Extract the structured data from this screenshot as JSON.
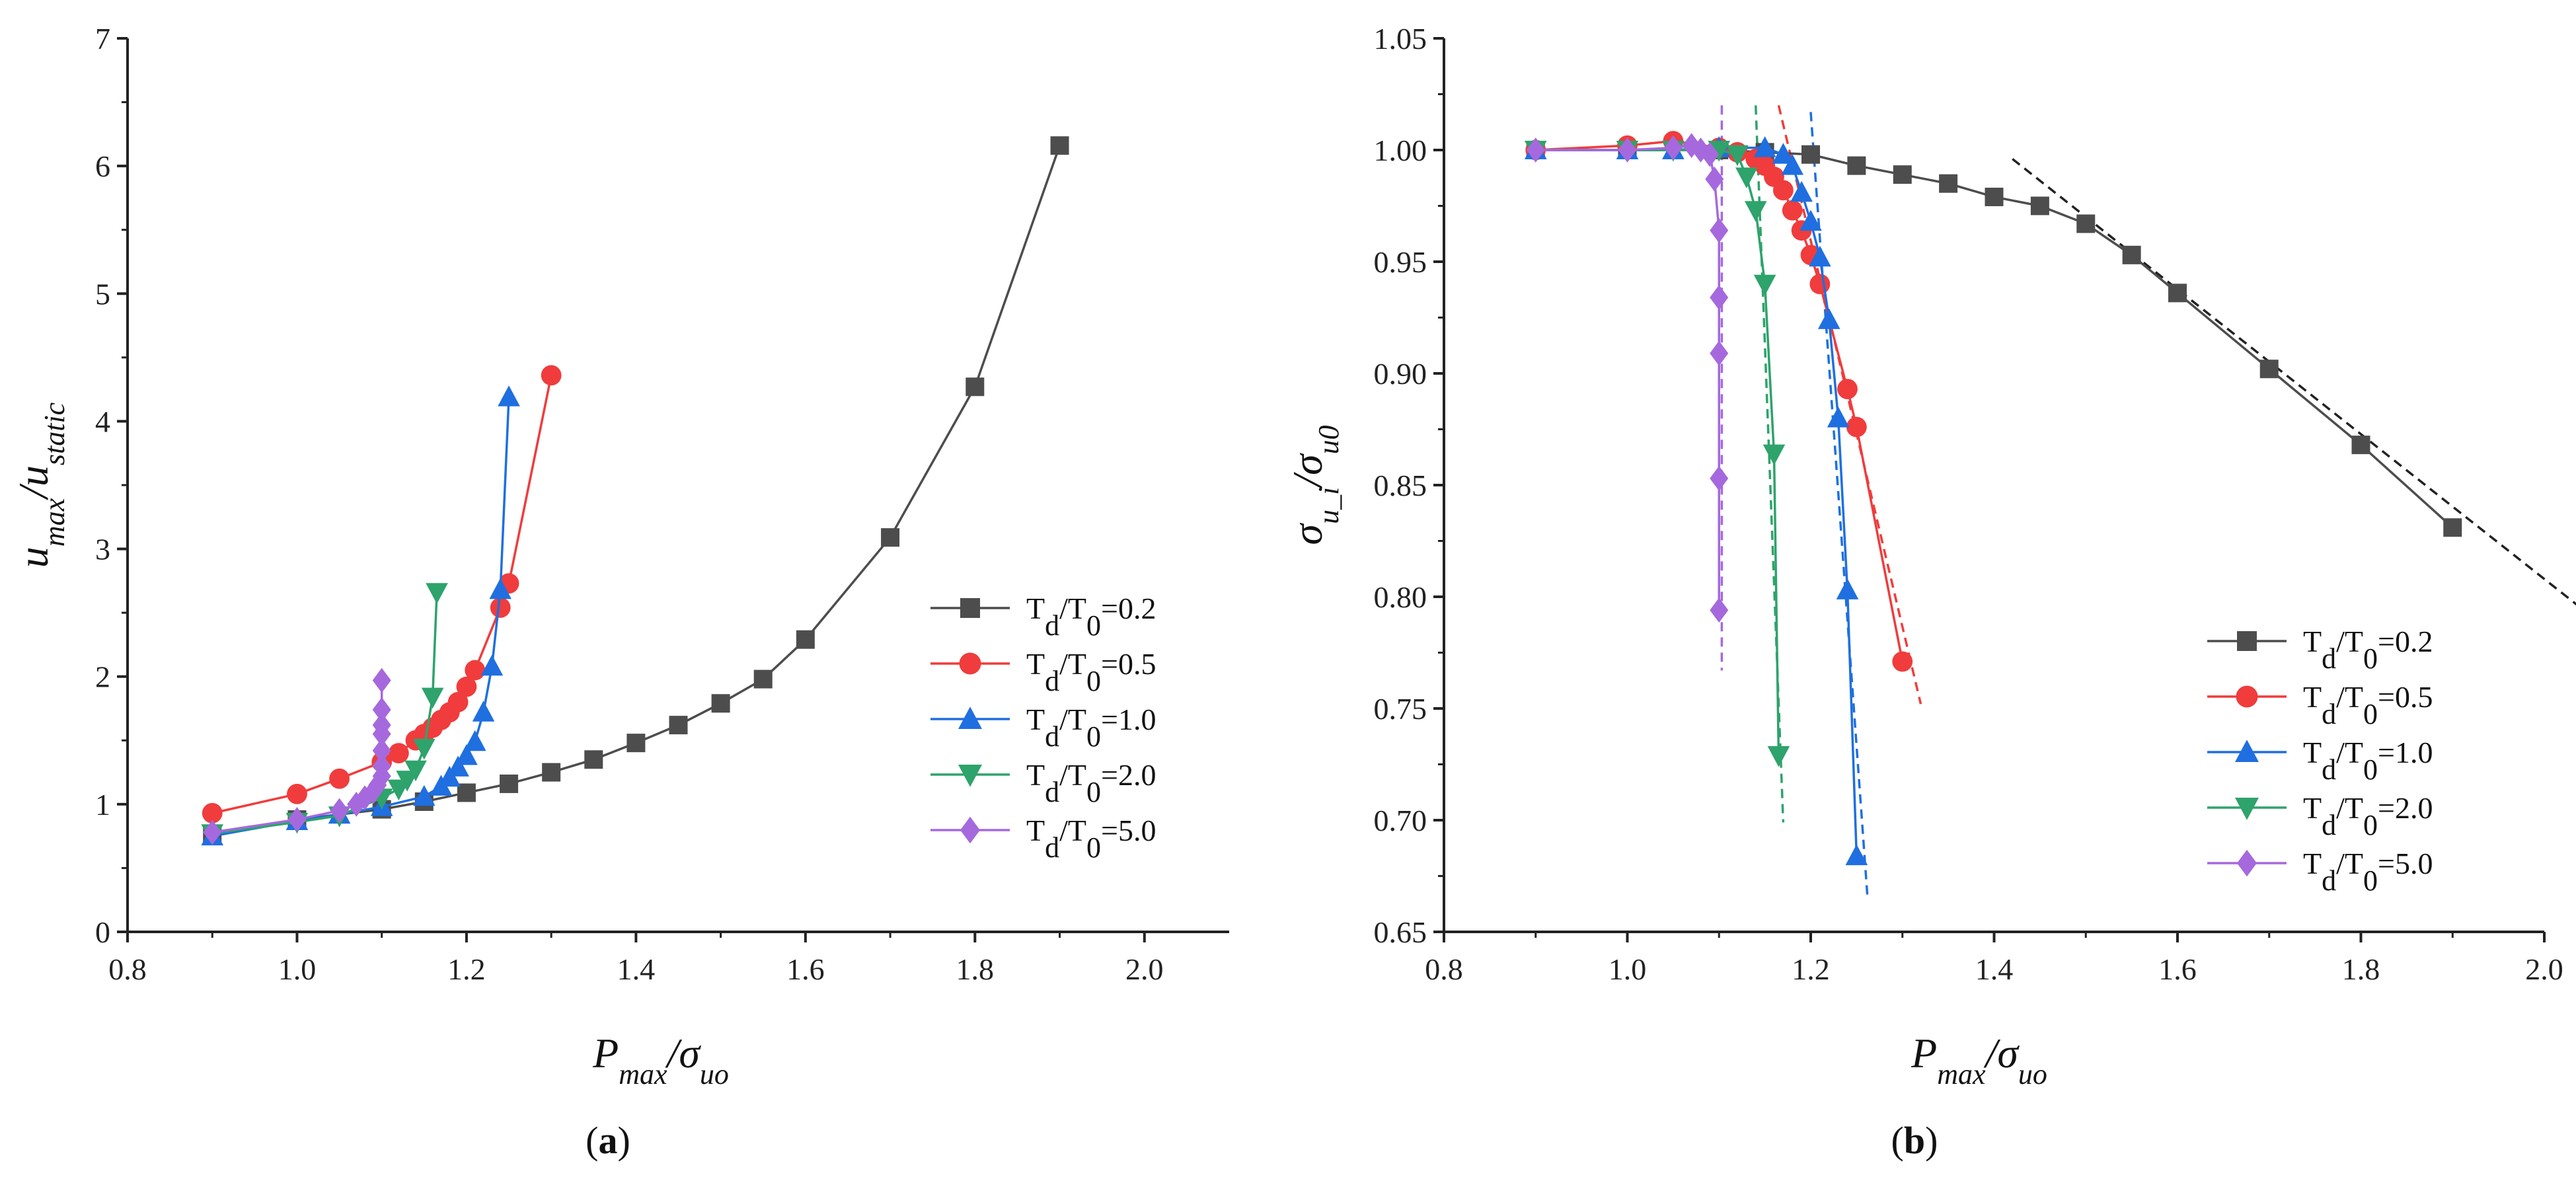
{
  "chart_data": [
    {
      "id": "a",
      "type": "line",
      "caption": "(a)",
      "xlabel": "P_max/σ_uo",
      "ylabel": "u_max/u_static",
      "xlim": [
        0.8,
        2.1
      ],
      "ylim": [
        0,
        7
      ],
      "xticks": [
        "0.8",
        "1.0",
        "1.2",
        "1.4",
        "1.6",
        "1.8",
        "2.0"
      ],
      "yticks": [
        "0",
        "1",
        "2",
        "3",
        "4",
        "5",
        "6",
        "7"
      ],
      "legend_position": "right",
      "series": [
        {
          "name": "Td/T0=0.2",
          "color": "#4d4d4d",
          "marker": "square",
          "x": [
            0.9,
            1.0,
            1.1,
            1.15,
            1.2,
            1.25,
            1.3,
            1.35,
            1.4,
            1.45,
            1.5,
            1.55,
            1.6,
            1.7,
            1.8,
            1.9
          ],
          "y": [
            0.76,
            0.88,
            0.96,
            1.02,
            1.09,
            1.16,
            1.25,
            1.35,
            1.48,
            1.62,
            1.79,
            1.98,
            2.29,
            3.09,
            4.27,
            6.16
          ]
        },
        {
          "name": "Td/T0=0.5",
          "color": "#f03c3c",
          "marker": "circle",
          "x": [
            0.9,
            1.0,
            1.05,
            1.1,
            1.12,
            1.14,
            1.15,
            1.16,
            1.17,
            1.18,
            1.19,
            1.2,
            1.21,
            1.24,
            1.25,
            1.3
          ],
          "y": [
            0.93,
            1.08,
            1.2,
            1.33,
            1.4,
            1.5,
            1.55,
            1.6,
            1.66,
            1.72,
            1.8,
            1.92,
            2.05,
            2.54,
            2.73,
            4.36
          ]
        },
        {
          "name": "Td/T0=1.0",
          "color": "#1f6fe0",
          "marker": "triangle-up",
          "x": [
            0.9,
            1.0,
            1.05,
            1.1,
            1.15,
            1.17,
            1.18,
            1.19,
            1.2,
            1.21,
            1.22,
            1.23,
            1.24,
            1.25
          ],
          "y": [
            0.75,
            0.87,
            0.92,
            0.98,
            1.06,
            1.14,
            1.21,
            1.29,
            1.38,
            1.49,
            1.72,
            2.08,
            2.68,
            4.19
          ]
        },
        {
          "name": "Td/T0=2.0",
          "color": "#2ea36b",
          "marker": "triangle-down",
          "x": [
            0.9,
            1.0,
            1.05,
            1.1,
            1.12,
            1.13,
            1.14,
            1.15,
            1.16,
            1.165
          ],
          "y": [
            0.77,
            0.86,
            0.91,
            1.05,
            1.12,
            1.19,
            1.27,
            1.44,
            1.84,
            2.66
          ]
        },
        {
          "name": "Td/T0=5.0",
          "color": "#a569dd",
          "marker": "diamond",
          "x": [
            0.9,
            1.0,
            1.05,
            1.07,
            1.08,
            1.09,
            1.095,
            1.1,
            1.1,
            1.1,
            1.1,
            1.1,
            1.1,
            1.1
          ],
          "y": [
            0.78,
            0.88,
            0.95,
            1.0,
            1.05,
            1.1,
            1.15,
            1.22,
            1.3,
            1.42,
            1.55,
            1.62,
            1.74,
            1.97
          ]
        }
      ]
    },
    {
      "id": "b",
      "type": "line",
      "caption": "(b)",
      "xlabel": "P_max/σ_uo",
      "ylabel": "σ_u_i/σ_u0",
      "xlim": [
        0.8,
        2.0
      ],
      "ylim": [
        0.65,
        1.05
      ],
      "xticks": [
        "0.8",
        "1.0",
        "1.2",
        "1.4",
        "1.6",
        "1.8",
        "2.0"
      ],
      "yticks": [
        "0.65",
        "0.70",
        "0.75",
        "0.80",
        "0.85",
        "0.90",
        "0.95",
        "1.00",
        "1.05"
      ],
      "legend_position": "bottom-right",
      "series": [
        {
          "name": "Td/T0=0.2",
          "color": "#4d4d4d",
          "marker": "square",
          "x": [
            0.9,
            1.0,
            1.1,
            1.15,
            1.2,
            1.25,
            1.3,
            1.35,
            1.4,
            1.45,
            1.5,
            1.55,
            1.6,
            1.7,
            1.8,
            1.9
          ],
          "y": [
            1.0,
            1.0,
            1.0,
            0.999,
            0.998,
            0.993,
            0.989,
            0.985,
            0.979,
            0.975,
            0.967,
            0.953,
            0.936,
            0.902,
            0.868,
            0.831
          ]
        },
        {
          "name": "Td/T0=0.5",
          "color": "#f03c3c",
          "marker": "circle",
          "x": [
            0.9,
            1.0,
            1.05,
            1.1,
            1.12,
            1.14,
            1.15,
            1.16,
            1.17,
            1.18,
            1.19,
            1.2,
            1.21,
            1.24,
            1.25,
            1.3
          ],
          "y": [
            1.0,
            1.002,
            1.004,
            1.001,
            0.999,
            0.996,
            0.993,
            0.988,
            0.982,
            0.973,
            0.964,
            0.953,
            0.94,
            0.893,
            0.876,
            0.771
          ]
        },
        {
          "name": "Td/T0=1.0",
          "color": "#1f6fe0",
          "marker": "triangle-up",
          "x": [
            0.9,
            1.0,
            1.05,
            1.1,
            1.15,
            1.17,
            1.18,
            1.19,
            1.2,
            1.21,
            1.22,
            1.23,
            1.24,
            1.25
          ],
          "y": [
            1.0,
            1.0,
            1.0,
            1.001,
            1.001,
            0.998,
            0.993,
            0.981,
            0.968,
            0.952,
            0.924,
            0.88,
            0.803,
            0.684
          ]
        },
        {
          "name": "Td/T0=2.0",
          "color": "#2ea36b",
          "marker": "triangle-down",
          "x": [
            0.9,
            1.0,
            1.05,
            1.1,
            1.12,
            1.13,
            1.14,
            1.15,
            1.16,
            1.165
          ],
          "y": [
            1.0,
            1.0,
            1.0,
            1.0,
            0.998,
            0.988,
            0.973,
            0.94,
            0.864,
            0.729
          ]
        },
        {
          "name": "Td/T0=5.0",
          "color": "#a569dd",
          "marker": "diamond",
          "x": [
            0.9,
            1.0,
            1.05,
            1.07,
            1.08,
            1.09,
            1.095,
            1.1,
            1.1,
            1.1,
            1.1,
            1.1
          ],
          "y": [
            1.0,
            1.0,
            1.001,
            1.002,
            1.0,
            0.998,
            0.987,
            0.964,
            0.934,
            0.909,
            0.853,
            0.794
          ]
        }
      ],
      "fit_lines": [
        {
          "color": "#222222",
          "x": [
            1.42,
            2.04
          ],
          "y": [
            0.996,
            0.795
          ]
        },
        {
          "color": "#f03c3c",
          "x": [
            1.165,
            1.32
          ],
          "y": [
            1.02,
            0.752
          ]
        },
        {
          "color": "#1f6fe0",
          "x": [
            1.2,
            1.262
          ],
          "y": [
            1.017,
            0.665
          ]
        },
        {
          "color": "#2ea36b",
          "x": [
            1.14,
            1.17
          ],
          "y": [
            1.02,
            0.699
          ]
        },
        {
          "color": "#a569dd",
          "x": [
            1.103,
            1.103
          ],
          "y": [
            1.02,
            0.767
          ]
        }
      ]
    }
  ]
}
